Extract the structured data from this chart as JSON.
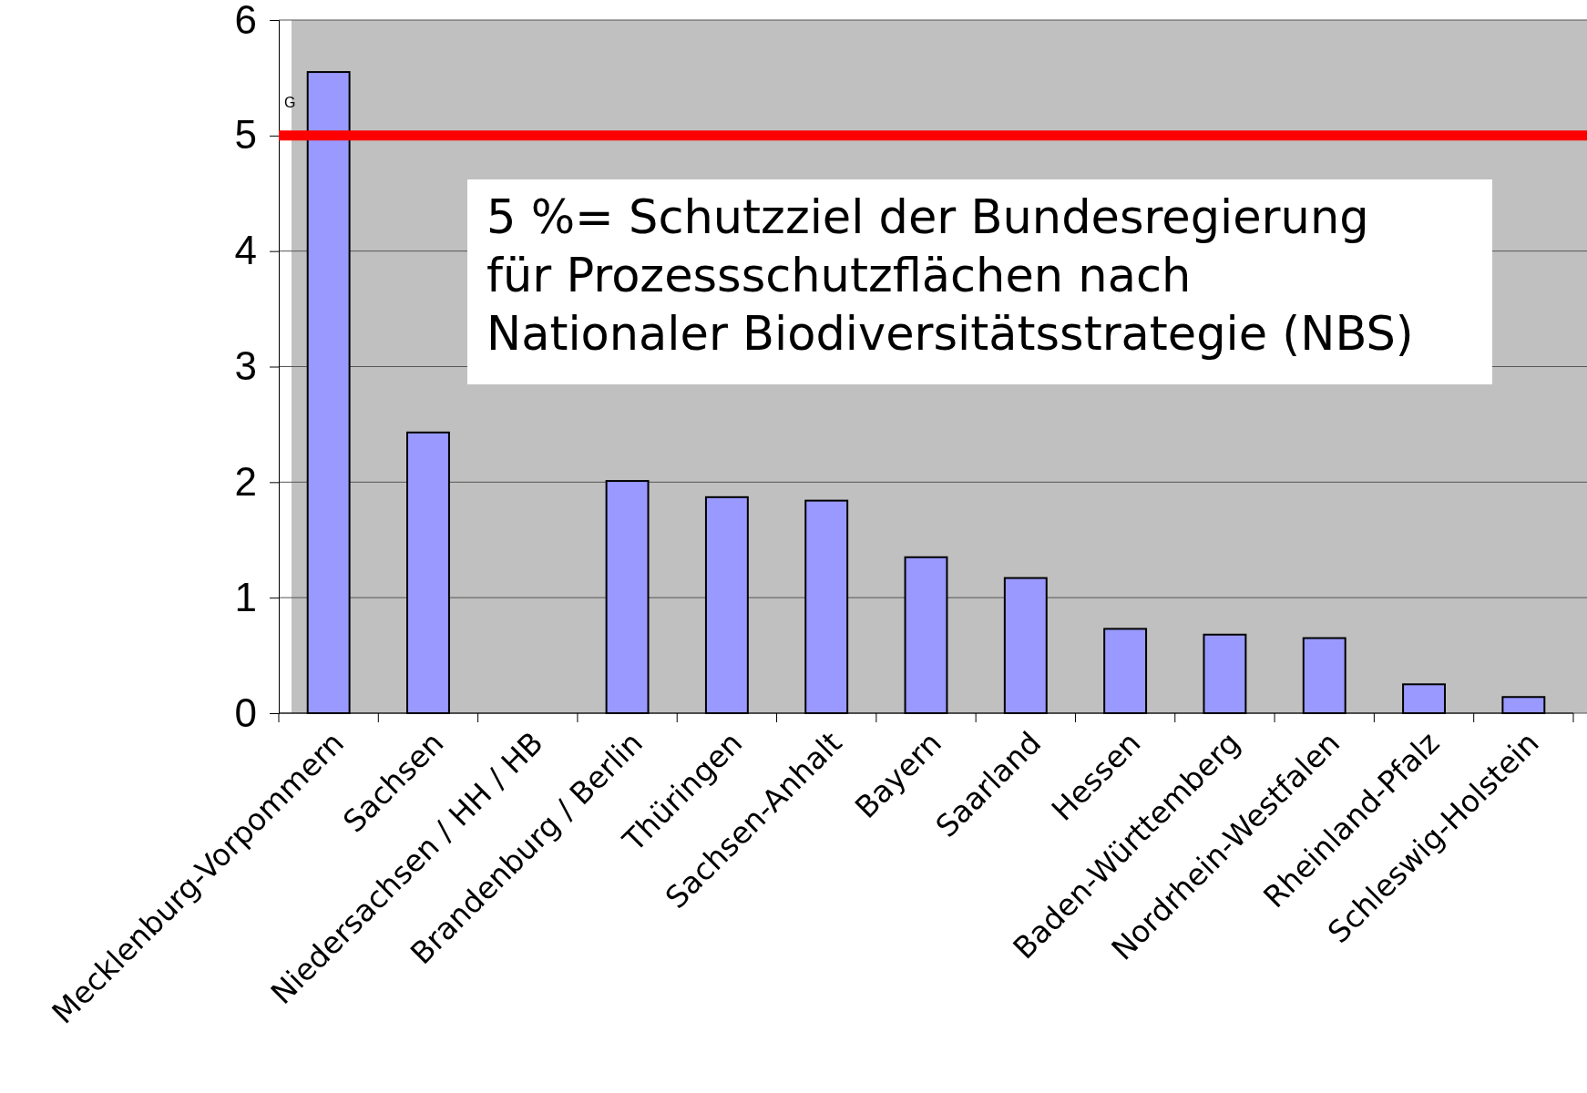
{
  "chart_data": {
    "type": "bar",
    "categories": [
      "Mecklenburg-Vorpommern",
      "Sachsen",
      "Niedersachsen / HH / HB",
      "Brandenburg / Berlin",
      "Thüringen",
      "Sachsen-Anhalt",
      "Bayern",
      "Saarland",
      "Hessen",
      "Baden-Württemberg",
      "Nordrhein-Westfalen",
      "Rheinland-Pfalz",
      "Schleswig-Holstein"
    ],
    "values": [
      5.55,
      2.43,
      null,
      2.01,
      1.87,
      1.84,
      1.35,
      1.17,
      0.73,
      0.68,
      0.65,
      0.25,
      0.14
    ],
    "color": "#9999ff",
    "ylim": [
      0,
      6
    ],
    "yticks": [
      0,
      1,
      2,
      3,
      4,
      5,
      6
    ],
    "grid": "y",
    "ref_lines": [
      {
        "axis": "y",
        "value": 5,
        "label": "5 %= Schutzziel der Bundesregierung\nfür Prozessschutzflächen nach\nNationaler Biodiversitätsstrategie (NBS)",
        "color": "#ff0000"
      }
    ],
    "annotations": [
      "G"
    ]
  }
}
